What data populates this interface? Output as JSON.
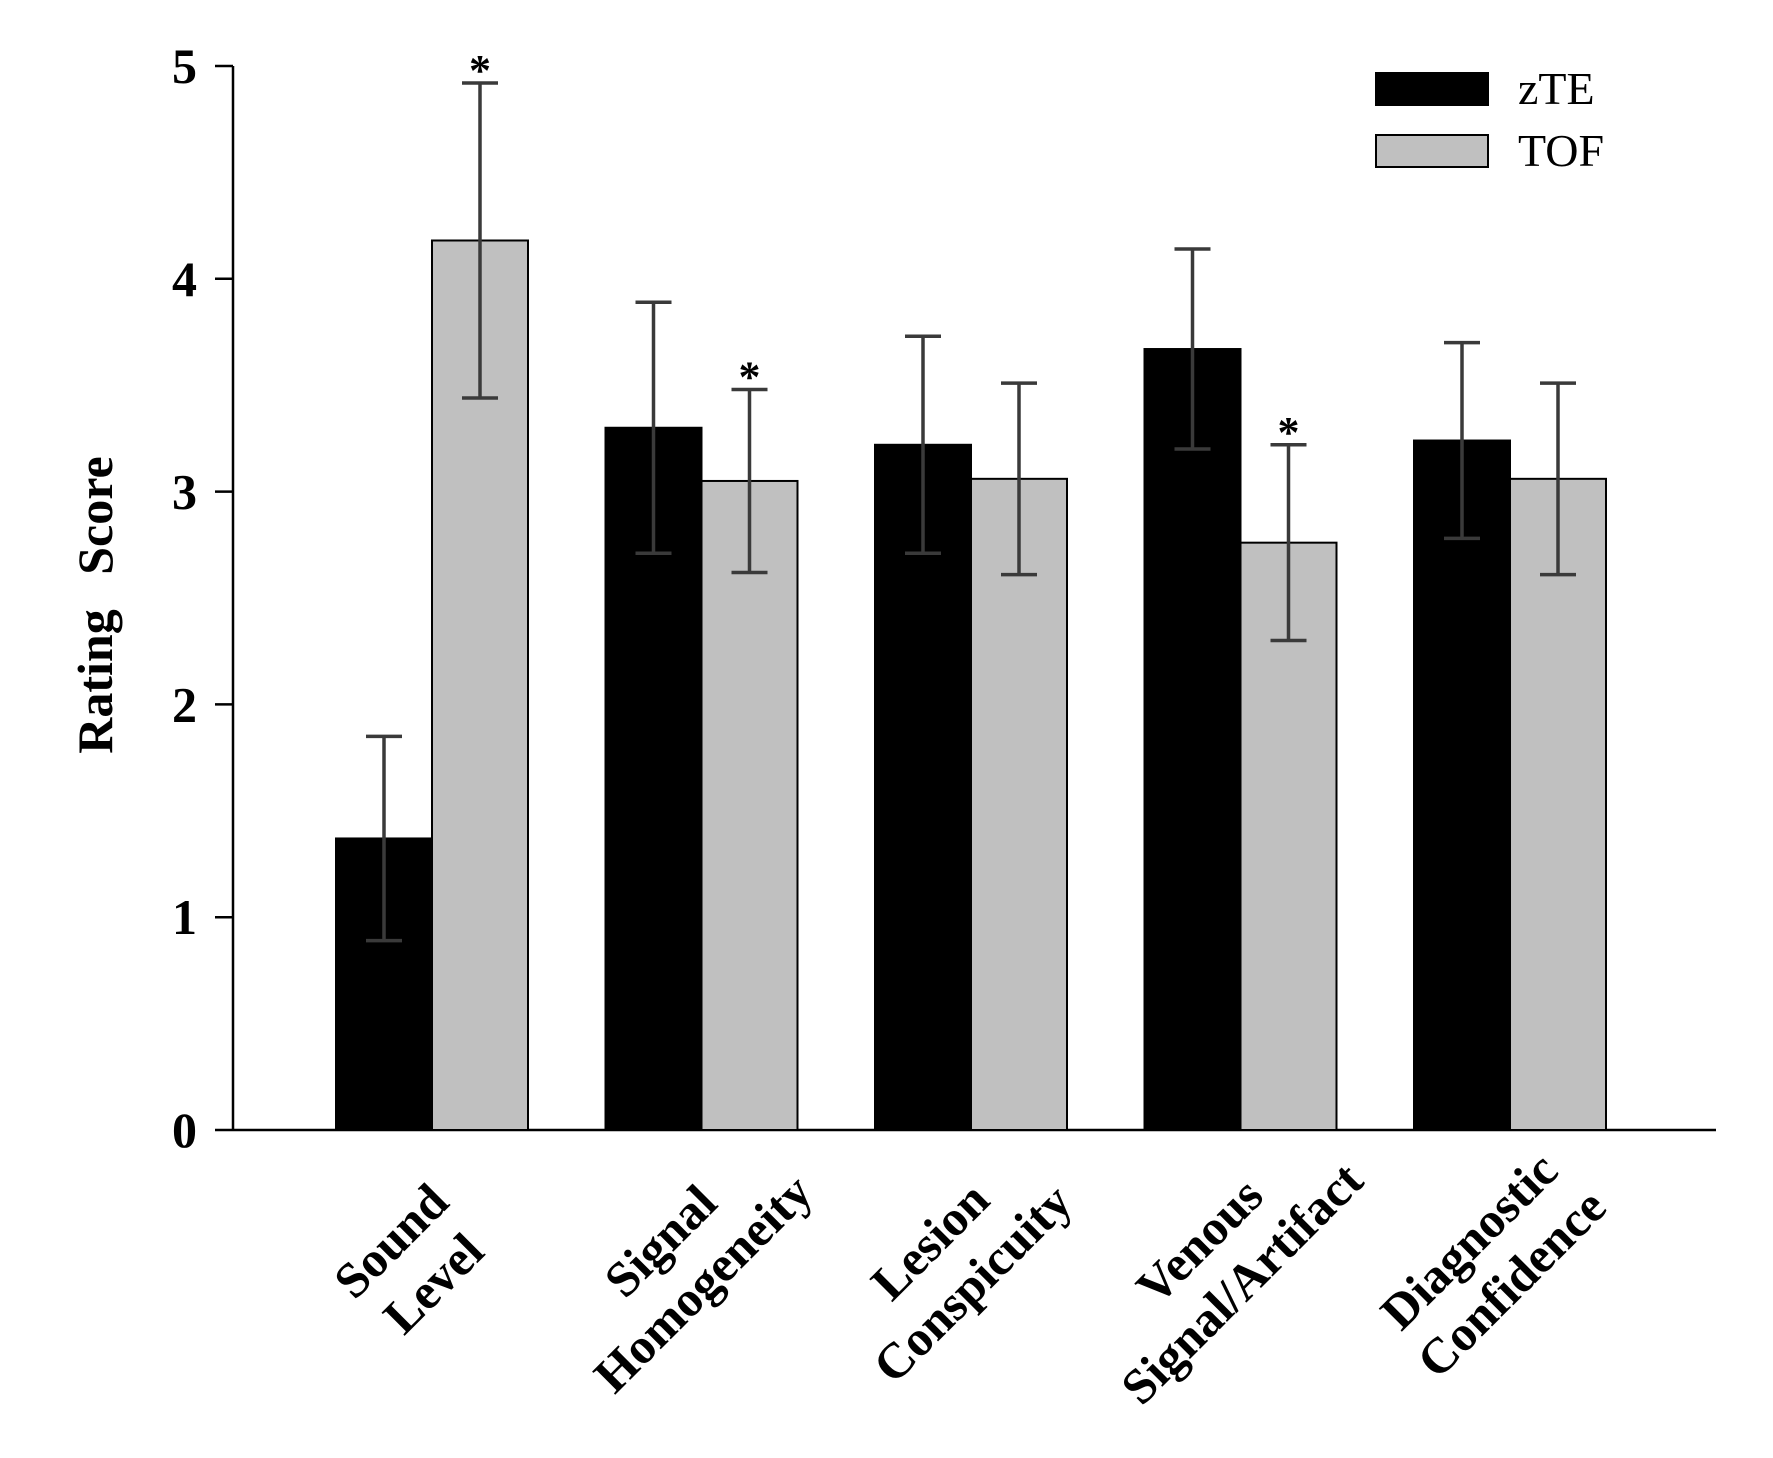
{
  "chart_data": {
    "type": "bar",
    "title": "",
    "xlabel": "",
    "ylabel": "Rating Score",
    "ylim": [
      0,
      5
    ],
    "yticks": [
      "0",
      "1",
      "2",
      "3",
      "4",
      "5"
    ],
    "categories": [
      [
        "Sound",
        "Level"
      ],
      [
        "Signal",
        "Homogeneity"
      ],
      [
        "Lesion",
        "Conspicuity"
      ],
      [
        "Venous",
        "Signal/Artifact"
      ],
      [
        "Diagnostic",
        "Confidence"
      ]
    ],
    "series": [
      {
        "name": "zTE",
        "color": "#000000",
        "values": [
          1.37,
          3.3,
          3.22,
          3.67,
          3.24
        ],
        "errors": [
          0.48,
          0.59,
          0.51,
          0.47,
          0.46
        ],
        "markers": [
          "",
          "",
          "",
          "",
          ""
        ]
      },
      {
        "name": "TOF",
        "color": "#c0c0c0",
        "values": [
          4.18,
          3.05,
          3.06,
          2.76,
          3.06
        ],
        "errors": [
          0.74,
          0.43,
          0.45,
          0.46,
          0.45
        ],
        "markers": [
          "*",
          "*",
          "",
          "*",
          ""
        ]
      }
    ],
    "legend_position": "top-right",
    "grid": false
  }
}
